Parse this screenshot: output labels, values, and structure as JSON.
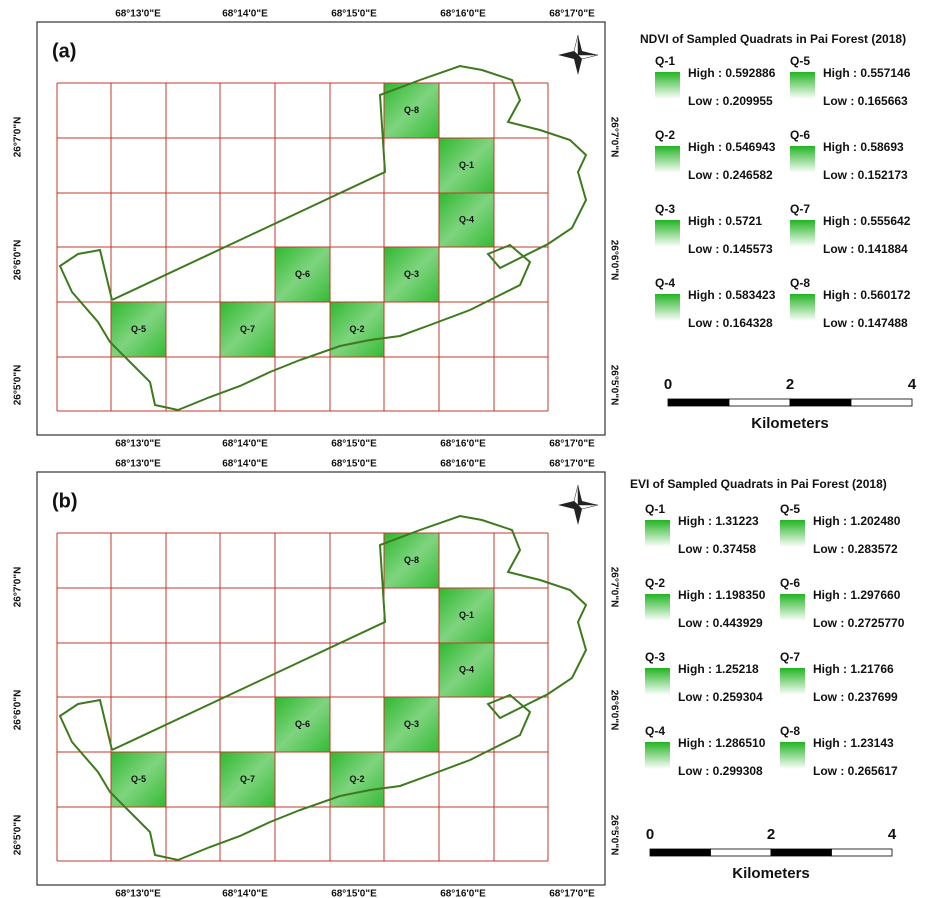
{
  "panels": [
    {
      "label": "(a)",
      "map": {
        "top_labels": [
          "68°13'0\"E",
          "68°14'0\"E",
          "68°15'0\"E",
          "68°16'0\"E",
          "68°17'0\"E"
        ],
        "bottom_labels": [
          "68°13'0\"E",
          "68°14'0\"E",
          "68°15'0\"E",
          "68°16'0\"E",
          "68°17'0\"E"
        ],
        "left_labels": [
          "26°7'0\"N",
          "26°6'0\"N",
          "26°5'0\"N"
        ],
        "right_labels": [
          "26°7'0\"N",
          "26°6'0\"N",
          "26°5'0\"N"
        ],
        "quadrats": [
          "Q-1",
          "Q-2",
          "Q-3",
          "Q-4",
          "Q-5",
          "Q-6",
          "Q-7",
          "Q-8"
        ]
      },
      "legend": {
        "title": "NDVI of Sampled Quadrats in Pai Forest (2018)",
        "items": [
          {
            "name": "Q-1",
            "high": "High : 0.592886",
            "low": "Low : 0.209955"
          },
          {
            "name": "Q-2",
            "high": "High : 0.546943",
            "low": "Low : 0.246582"
          },
          {
            "name": "Q-3",
            "high": "High : 0.5721",
            "low": "Low : 0.145573"
          },
          {
            "name": "Q-4",
            "high": "High : 0.583423",
            "low": "Low : 0.164328"
          },
          {
            "name": "Q-5",
            "high": "High : 0.557146",
            "low": "Low : 0.165663"
          },
          {
            "name": "Q-6",
            "high": "High : 0.58693",
            "low": "Low : 0.152173"
          },
          {
            "name": "Q-7",
            "high": "High : 0.555642",
            "low": "Low : 0.141884"
          },
          {
            "name": "Q-8",
            "high": "High : 0.560172",
            "low": "Low : 0.147488"
          }
        ]
      },
      "scale": {
        "ticks": [
          "0",
          "2",
          "4"
        ],
        "unit": "Kilometers"
      }
    },
    {
      "label": "(b)",
      "map": {
        "top_labels": [
          "68°13'0\"E",
          "68°14'0\"E",
          "68°15'0\"E",
          "68°16'0\"E",
          "68°17'0\"E"
        ],
        "bottom_labels": [
          "68°13'0\"E",
          "68°14'0\"E",
          "68°15'0\"E",
          "68°16'0\"E",
          "68°17'0\"E"
        ],
        "left_labels": [
          "26°7'0\"N",
          "26°6'0\"N",
          "26°5'0\"N"
        ],
        "right_labels": [
          "26°7'0\"N",
          "26°6'0\"N",
          "26°5'0\"N"
        ],
        "quadrats": [
          "Q-1",
          "Q-2",
          "Q-3",
          "Q-4",
          "Q-5",
          "Q-6",
          "Q-7",
          "Q-8"
        ]
      },
      "legend": {
        "title": "EVI of Sampled Quadrats in Pai Forest (2018)",
        "items": [
          {
            "name": "Q-1",
            "high": "High : 1.31223",
            "low": "Low : 0.37458"
          },
          {
            "name": "Q-2",
            "high": "High : 1.198350",
            "low": "Low : 0.443929"
          },
          {
            "name": "Q-3",
            "high": "High : 1.25218",
            "low": "Low : 0.259304"
          },
          {
            "name": "Q-4",
            "high": "High : 1.286510",
            "low": "Low : 0.299308"
          },
          {
            "name": "Q-5",
            "high": "High : 1.202480",
            "low": "Low : 0.283572"
          },
          {
            "name": "Q-6",
            "high": "High : 1.297660",
            "low": "Low : 0.2725770"
          },
          {
            "name": "Q-7",
            "high": "High : 1.21766",
            "low": "Low : 0.237699"
          },
          {
            "name": "Q-8",
            "high": "High : 1.23143",
            "low": "Low : 0.265617"
          }
        ]
      },
      "scale": {
        "ticks": [
          "0",
          "2",
          "4"
        ],
        "unit": "Kilometers"
      }
    }
  ]
}
